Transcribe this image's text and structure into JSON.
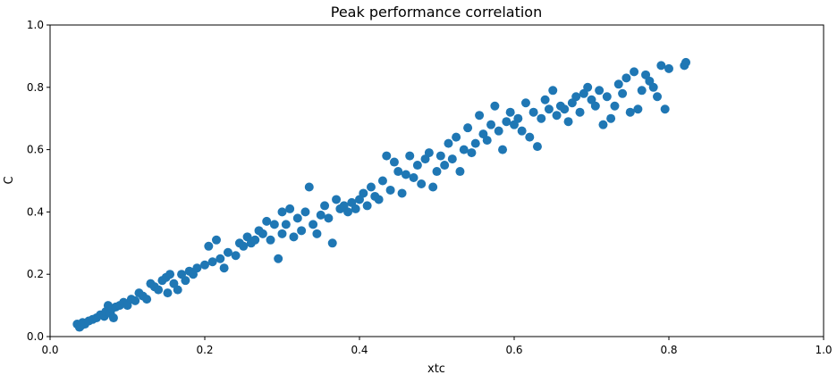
{
  "chart_data": {
    "type": "scatter",
    "title": "Peak performance correlation",
    "x_label": "xtc",
    "y_label": "C",
    "color": "#1f77b4",
    "xlim": [
      0,
      1
    ],
    "ylim": [
      0,
      1
    ],
    "xticks": [
      {
        "value": 0,
        "label": "0.0"
      },
      0.2,
      0.4,
      0.6,
      0.8,
      {
        "value": 1,
        "label": "1.0"
      }
    ],
    "yticks": [
      {
        "value": 0,
        "label": "0.0"
      },
      0.2,
      0.4,
      0.6,
      0.8,
      {
        "value": 1,
        "label": "1.0"
      }
    ],
    "grid": false,
    "x": [
      0.035,
      0.038,
      0.04,
      0.042,
      0.045,
      0.05,
      0.055,
      0.06,
      0.065,
      0.07,
      0.072,
      0.075,
      0.078,
      0.08,
      0.082,
      0.085,
      0.09,
      0.095,
      0.1,
      0.105,
      0.11,
      0.115,
      0.12,
      0.125,
      0.13,
      0.135,
      0.14,
      0.145,
      0.15,
      0.152,
      0.155,
      0.16,
      0.165,
      0.17,
      0.175,
      0.18,
      0.185,
      0.19,
      0.2,
      0.205,
      0.21,
      0.215,
      0.22,
      0.225,
      0.23,
      0.24,
      0.245,
      0.25,
      0.255,
      0.26,
      0.265,
      0.27,
      0.275,
      0.28,
      0.285,
      0.29,
      0.295,
      0.3,
      0.3,
      0.305,
      0.31,
      0.315,
      0.32,
      0.325,
      0.33,
      0.335,
      0.34,
      0.345,
      0.35,
      0.355,
      0.36,
      0.365,
      0.37,
      0.375,
      0.38,
      0.385,
      0.39,
      0.395,
      0.4,
      0.405,
      0.41,
      0.415,
      0.42,
      0.425,
      0.43,
      0.435,
      0.44,
      0.445,
      0.45,
      0.455,
      0.46,
      0.465,
      0.47,
      0.475,
      0.48,
      0.485,
      0.49,
      0.495,
      0.5,
      0.505,
      0.51,
      0.515,
      0.52,
      0.525,
      0.53,
      0.535,
      0.54,
      0.545,
      0.55,
      0.555,
      0.56,
      0.565,
      0.57,
      0.575,
      0.58,
      0.585,
      0.59,
      0.595,
      0.6,
      0.605,
      0.61,
      0.615,
      0.62,
      0.625,
      0.63,
      0.635,
      0.64,
      0.645,
      0.65,
      0.655,
      0.66,
      0.665,
      0.67,
      0.675,
      0.68,
      0.685,
      0.69,
      0.695,
      0.7,
      0.705,
      0.71,
      0.715,
      0.72,
      0.725,
      0.73,
      0.735,
      0.74,
      0.745,
      0.75,
      0.755,
      0.76,
      0.765,
      0.77,
      0.775,
      0.78,
      0.785,
      0.79,
      0.795,
      0.8,
      0.82,
      0.822
    ],
    "y": [
      0.04,
      0.03,
      0.035,
      0.045,
      0.04,
      0.05,
      0.055,
      0.06,
      0.07,
      0.065,
      0.08,
      0.1,
      0.075,
      0.09,
      0.06,
      0.095,
      0.1,
      0.11,
      0.1,
      0.12,
      0.115,
      0.14,
      0.13,
      0.12,
      0.17,
      0.16,
      0.15,
      0.18,
      0.19,
      0.14,
      0.2,
      0.17,
      0.15,
      0.2,
      0.18,
      0.21,
      0.2,
      0.22,
      0.23,
      0.29,
      0.24,
      0.31,
      0.25,
      0.22,
      0.27,
      0.26,
      0.3,
      0.29,
      0.32,
      0.3,
      0.31,
      0.34,
      0.33,
      0.37,
      0.31,
      0.36,
      0.25,
      0.33,
      0.4,
      0.36,
      0.41,
      0.32,
      0.38,
      0.34,
      0.4,
      0.48,
      0.36,
      0.33,
      0.39,
      0.42,
      0.38,
      0.3,
      0.44,
      0.41,
      0.42,
      0.4,
      0.43,
      0.41,
      0.44,
      0.46,
      0.42,
      0.48,
      0.45,
      0.44,
      0.5,
      0.58,
      0.47,
      0.56,
      0.53,
      0.46,
      0.52,
      0.58,
      0.51,
      0.55,
      0.49,
      0.57,
      0.59,
      0.48,
      0.53,
      0.58,
      0.55,
      0.62,
      0.57,
      0.64,
      0.53,
      0.6,
      0.67,
      0.59,
      0.62,
      0.71,
      0.65,
      0.63,
      0.68,
      0.74,
      0.66,
      0.6,
      0.69,
      0.72,
      0.68,
      0.7,
      0.66,
      0.75,
      0.64,
      0.72,
      0.61,
      0.7,
      0.76,
      0.73,
      0.79,
      0.71,
      0.74,
      0.73,
      0.69,
      0.75,
      0.77,
      0.72,
      0.78,
      0.8,
      0.76,
      0.74,
      0.79,
      0.68,
      0.77,
      0.7,
      0.74,
      0.81,
      0.78,
      0.83,
      0.72,
      0.85,
      0.73,
      0.79,
      0.84,
      0.82,
      0.8,
      0.77,
      0.87,
      0.73,
      0.86,
      0.87,
      0.88
    ]
  }
}
